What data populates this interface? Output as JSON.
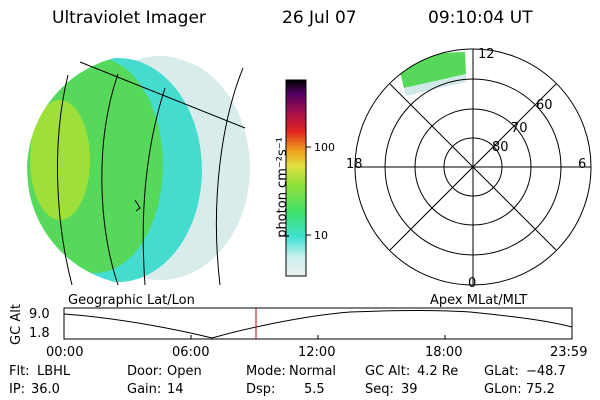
{
  "header": {
    "instrument": "Ultraviolet Imager",
    "date": "26 Jul 07",
    "time": "09:10:04 UT"
  },
  "colorbar": {
    "label": "photon cm⁻²s⁻¹",
    "ticks": [
      "100",
      "10"
    ]
  },
  "polar_plot": {
    "mlt_labels": {
      "top": "12",
      "left": "18",
      "right": "6",
      "bottom": "0"
    },
    "lat_labels": [
      "60",
      "70",
      "80"
    ]
  },
  "panel_labels": {
    "left": "Geographic Lat/Lon",
    "right": "Apex MLat/MLT"
  },
  "gc_alt_plot": {
    "ylabel": "GC Alt",
    "yticks": [
      "9.0",
      "1.8"
    ],
    "xticks": [
      "00:00",
      "06:00",
      "12:00",
      "18:00",
      "23:59"
    ],
    "current_time_marker": "09:10"
  },
  "status": {
    "row1": [
      {
        "key": "Flt:",
        "value": "LBHL"
      },
      {
        "key": "Door:",
        "value": "Open"
      },
      {
        "key": "Mode:",
        "value": "Normal"
      },
      {
        "key": "GC Alt:",
        "value": "4.2 Re"
      },
      {
        "key": "GLat:",
        "value": "−48.7"
      }
    ],
    "row2": [
      {
        "key": "IP:",
        "value": "36.0"
      },
      {
        "key": "Gain:",
        "value": "14"
      },
      {
        "key": "Dsp:",
        "value": "5.5"
      },
      {
        "key": "Seq:",
        "value": "39"
      },
      {
        "key": "GLon:",
        "value": "75.2"
      }
    ]
  },
  "colors": {
    "line": "#000000",
    "marker": "#cc0000",
    "aurora_green": "#5fdc3a",
    "aurora_yellowgreen": "#a8e23a",
    "aurora_cyan": "#3fe0d0",
    "aurora_pale": "#cfe8e8"
  }
}
